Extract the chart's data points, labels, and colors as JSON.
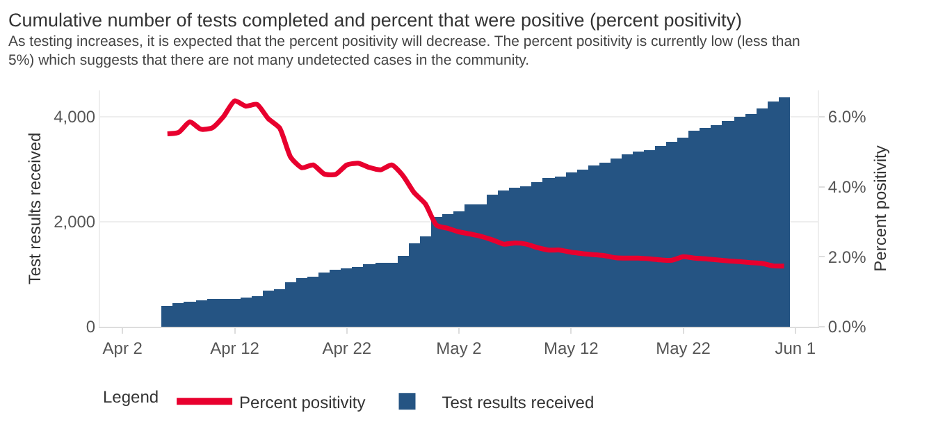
{
  "chart_data": {
    "type": "bar",
    "title": "Cumulative number of tests completed and percent that were positive (percent positivity)",
    "subtitle": "As testing increases, it is expected that the percent positivity will decrease. The percent positivity is currently low (less than 5%) which suggests that there are not many undetected cases in the community.",
    "xlabel": null,
    "ylabel": "Test results received",
    "y2label": "Percent positivity",
    "legend_title": "Legend",
    "x": [
      "--04-06",
      "--04-07",
      "--04-08",
      "--04-09",
      "--04-10",
      "--04-11",
      "--04-12",
      "--04-13",
      "--04-14",
      "--04-15",
      "--04-16",
      "--04-17",
      "--04-18",
      "--04-19",
      "--04-20",
      "--04-21",
      "--04-22",
      "--04-23",
      "--04-24",
      "--04-25",
      "--04-26",
      "--04-27",
      "--04-28",
      "--04-29",
      "--04-30",
      "--05-01",
      "--05-02",
      "--05-03",
      "--05-04",
      "--05-05",
      "--05-06",
      "--05-07",
      "--05-08",
      "--05-09",
      "--05-10",
      "--05-11",
      "--05-12",
      "--05-13",
      "--05-14",
      "--05-15",
      "--05-16",
      "--05-17",
      "--05-18",
      "--05-19",
      "--05-20",
      "--05-21",
      "--05-22",
      "--05-23",
      "--05-24",
      "--05-25",
      "--05-26",
      "--05-27",
      "--05-28",
      "--05-29",
      "--05-30",
      "--05-31"
    ],
    "series": [
      {
        "name": "Percent positivity",
        "type": "line",
        "axis": "y2",
        "color": "#e8002e",
        "values": [
          5.51,
          5.55,
          5.85,
          5.64,
          5.68,
          6.0,
          6.45,
          6.3,
          6.35,
          5.94,
          5.68,
          4.84,
          4.54,
          4.62,
          4.36,
          4.35,
          4.62,
          4.67,
          4.55,
          4.48,
          4.62,
          4.32,
          3.83,
          3.51,
          2.9,
          2.81,
          2.71,
          2.65,
          2.58,
          2.48,
          2.36,
          2.39,
          2.36,
          2.26,
          2.19,
          2.19,
          2.13,
          2.09,
          2.06,
          2.03,
          1.97,
          1.96,
          1.96,
          1.94,
          1.91,
          1.9,
          2.0,
          1.96,
          1.94,
          1.91,
          1.88,
          1.86,
          1.83,
          1.81,
          1.74,
          1.73
        ]
      },
      {
        "name": "Test results received",
        "axis": "y",
        "color": "#255483",
        "values": [
          390,
          440,
          470,
          490,
          520,
          530,
          540,
          560,
          570,
          690,
          720,
          850,
          920,
          960,
          1020,
          1080,
          1110,
          1140,
          1180,
          1220,
          1230,
          1340,
          1580,
          1720,
          2100,
          2140,
          2210,
          2320,
          2340,
          2520,
          2600,
          2650,
          2680,
          2760,
          2820,
          2860,
          2940,
          3000,
          3060,
          3120,
          3200,
          3280,
          3330,
          3360,
          3430,
          3520,
          3600,
          3720,
          3780,
          3840,
          3920,
          3990,
          4040,
          4160,
          4280,
          4360
        ]
      }
    ],
    "xlim": [
      "--03-31",
      "--06-03"
    ],
    "xticks": [
      {
        "value": "--04-02",
        "label": "Apr 2"
      },
      {
        "value": "--04-12",
        "label": "Apr 12"
      },
      {
        "value": "--04-22",
        "label": "Apr 22"
      },
      {
        "value": "--05-02",
        "label": "May 2"
      },
      {
        "value": "--05-12",
        "label": "May 12"
      },
      {
        "value": "--05-22",
        "label": "May 22"
      },
      {
        "value": "--06-01",
        "label": "Jun 1"
      }
    ],
    "ylim": [
      0,
      4500
    ],
    "yticks": [
      0,
      {
        "value": 2000,
        "label": "2,000"
      },
      {
        "value": 4000,
        "label": "4,000"
      }
    ],
    "y2lim": [
      0,
      6.75
    ],
    "y2ticks": [
      {
        "value": 0,
        "label": "0.0%"
      },
      {
        "value": 2,
        "label": "2.0%"
      },
      {
        "value": 4,
        "label": "4.0%"
      },
      {
        "value": 6,
        "label": "6.0%"
      }
    ],
    "grid": "y",
    "legend": "bottom",
    "marker": "none",
    "line_style": "solid"
  }
}
